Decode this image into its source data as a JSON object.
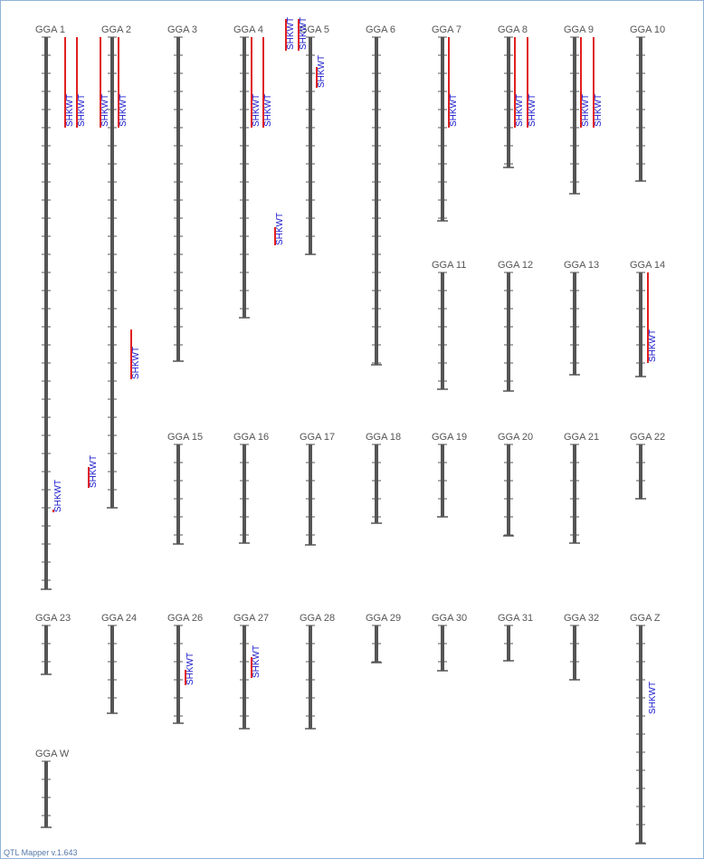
{
  "app": {
    "version_text": "QTL Mapper v.1.643"
  },
  "colors": {
    "chromosome": "#555555",
    "qtl_bar": "#e02020",
    "qtl_label": "#1a1acc",
    "label": "#555555"
  },
  "trait": "SHKWT",
  "chromosomes": [
    {
      "name": "GGA 1"
    },
    {
      "name": "GGA 2"
    },
    {
      "name": "GGA 3"
    },
    {
      "name": "GGA 4"
    },
    {
      "name": "GGA 5"
    },
    {
      "name": "GGA 6"
    },
    {
      "name": "GGA 7"
    },
    {
      "name": "GGA 8"
    },
    {
      "name": "GGA 9"
    },
    {
      "name": "GGA 10"
    },
    {
      "name": "GGA 11"
    },
    {
      "name": "GGA 12"
    },
    {
      "name": "GGA 13"
    },
    {
      "name": "GGA 14"
    },
    {
      "name": "GGA 15"
    },
    {
      "name": "GGA 16"
    },
    {
      "name": "GGA 17"
    },
    {
      "name": "GGA 18"
    },
    {
      "name": "GGA 19"
    },
    {
      "name": "GGA 20"
    },
    {
      "name": "GGA 21"
    },
    {
      "name": "GGA 22"
    },
    {
      "name": "GGA 23"
    },
    {
      "name": "GGA 24"
    },
    {
      "name": "GGA 26"
    },
    {
      "name": "GGA 27"
    },
    {
      "name": "GGA 28"
    },
    {
      "name": "GGA 29"
    },
    {
      "name": "GGA 30"
    },
    {
      "name": "GGA 31"
    },
    {
      "name": "GGA 32"
    },
    {
      "name": "GGA Z"
    },
    {
      "name": "GGA W"
    }
  ],
  "qtls": [
    {
      "chr": "GGA 1",
      "label": "SHKWT"
    },
    {
      "chr": "GGA 1",
      "label": "SHKWT"
    },
    {
      "chr": "GGA 1",
      "label": "SHKWT"
    },
    {
      "chr": "GGA 1",
      "label": "SHKWT"
    },
    {
      "chr": "GGA 2",
      "label": "SHKWT"
    },
    {
      "chr": "GGA 2",
      "label": "SHKWT"
    },
    {
      "chr": "GGA 2",
      "label": "SHKWT"
    },
    {
      "chr": "GGA 4",
      "label": "SHKWT"
    },
    {
      "chr": "GGA 4",
      "label": "SHKWT"
    },
    {
      "chr": "GGA 4",
      "label": "SHKWT"
    },
    {
      "chr": "GGA 5",
      "label": "SHKWT"
    },
    {
      "chr": "GGA 5",
      "label": "SHKWT"
    },
    {
      "chr": "GGA 5",
      "label": "SHKWT"
    },
    {
      "chr": "GGA 7",
      "label": "SHKWT"
    },
    {
      "chr": "GGA 8",
      "label": "SHKWT"
    },
    {
      "chr": "GGA 8",
      "label": "SHKWT"
    },
    {
      "chr": "GGA 9",
      "label": "SHKWT"
    },
    {
      "chr": "GGA 9",
      "label": "SHKWT"
    },
    {
      "chr": "GGA 14",
      "label": "SHKWT"
    },
    {
      "chr": "GGA 26",
      "label": "SHKWT"
    },
    {
      "chr": "GGA 27",
      "label": "SHKWT"
    },
    {
      "chr": "GGA Z",
      "label": "SHKWT"
    }
  ]
}
